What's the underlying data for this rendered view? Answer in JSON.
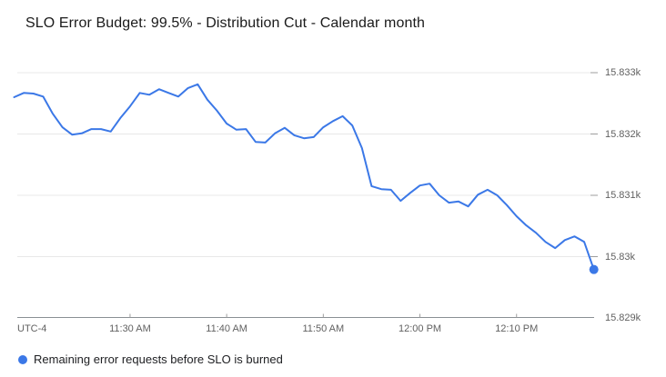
{
  "header": {
    "title": "SLO Error Budget: 99.5% - Distribution Cut - Calendar month"
  },
  "axes": {
    "utc_label": "UTC-4"
  },
  "legend": {
    "label": "Remaining error requests before SLO is burned",
    "marker_color": "#3B78E7"
  },
  "colors": {
    "line": "#3B78E7",
    "end_marker": "#3B78E7",
    "gridline": "#e8e8e8",
    "axis_line": "#8a8f94",
    "tick": "#9e9e9e",
    "axis_label": "#616161",
    "title_text": "#1a1a1a",
    "legend_text": "#202124",
    "background": "#ffffff"
  },
  "chart_data": {
    "type": "line",
    "title": "SLO Error Budget: 99.5% - Distribution Cut - Calendar month",
    "xlabel": "UTC-4",
    "ylabel": "",
    "grid": "horizontal",
    "legend_position": "bottom-left",
    "end_point_marker": true,
    "ylim": [
      15829,
      15833.3
    ],
    "y_ticks": [
      15833,
      15832,
      15831,
      15830,
      15829
    ],
    "y_tick_labels": [
      "15.833k",
      "15.832k",
      "15.831k",
      "15.83k",
      "15.829k"
    ],
    "x_tick_labels": [
      "11:30 AM",
      "11:40 AM",
      "11:50 AM",
      "12:00 PM",
      "12:10 PM"
    ],
    "x": [
      "11:18 AM",
      "11:19 AM",
      "11:20 AM",
      "11:21 AM",
      "11:22 AM",
      "11:23 AM",
      "11:24 AM",
      "11:25 AM",
      "11:26 AM",
      "11:27 AM",
      "11:28 AM",
      "11:29 AM",
      "11:30 AM",
      "11:31 AM",
      "11:32 AM",
      "11:33 AM",
      "11:34 AM",
      "11:35 AM",
      "11:36 AM",
      "11:37 AM",
      "11:38 AM",
      "11:39 AM",
      "11:40 AM",
      "11:41 AM",
      "11:42 AM",
      "11:43 AM",
      "11:44 AM",
      "11:45 AM",
      "11:46 AM",
      "11:47 AM",
      "11:48 AM",
      "11:49 AM",
      "11:50 AM",
      "11:51 AM",
      "11:52 AM",
      "11:53 AM",
      "11:54 AM",
      "11:55 AM",
      "11:56 AM",
      "11:57 AM",
      "11:58 AM",
      "11:59 AM",
      "12:00 PM",
      "12:01 PM",
      "12:02 PM",
      "12:03 PM",
      "12:04 PM",
      "12:05 PM",
      "12:06 PM",
      "12:07 PM",
      "12:08 PM",
      "12:09 PM",
      "12:10 PM",
      "12:11 PM",
      "12:12 PM",
      "12:13 PM",
      "12:14 PM",
      "12:15 PM",
      "12:16 PM",
      "12:17 PM",
      "12:18 PM"
    ],
    "series": [
      {
        "name": "Remaining error requests before SLO is burned",
        "color": "#3B78E7",
        "values": [
          15832.6,
          15832.67,
          15832.66,
          15832.61,
          15832.33,
          15832.11,
          15831.99,
          15832.01,
          15832.08,
          15832.08,
          15832.04,
          15832.26,
          15832.45,
          15832.67,
          15832.64,
          15832.73,
          15832.67,
          15832.61,
          15832.75,
          15832.81,
          15832.56,
          15832.38,
          15832.17,
          15832.07,
          15832.08,
          15831.87,
          15831.86,
          15832.01,
          15832.1,
          15831.98,
          15831.93,
          15831.95,
          15832.11,
          15832.21,
          15832.29,
          15832.14,
          15831.77,
          15831.15,
          15831.1,
          15831.09,
          15830.91,
          15831.04,
          15831.16,
          15831.19,
          15831.0,
          15830.88,
          15830.9,
          15830.82,
          15831.01,
          15831.09,
          15831.0,
          15830.84,
          15830.66,
          15830.51,
          15830.39,
          15830.24,
          15830.14,
          15830.27,
          15830.33,
          15830.24,
          15829.79
        ]
      }
    ]
  }
}
